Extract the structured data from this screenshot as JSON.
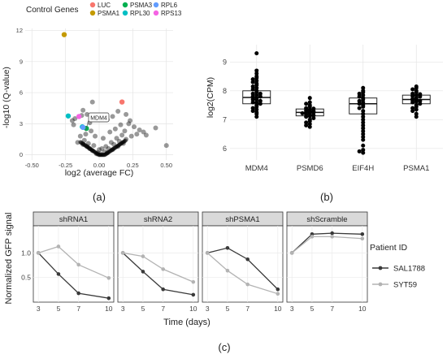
{
  "chart_data": [
    {
      "panel": "(a)",
      "type": "scatter",
      "xlabel": "log2 (average FC)",
      "ylabel": "-log10 (Q-value)",
      "xlim": [
        -0.55,
        0.55
      ],
      "ylim": [
        -0.5,
        12.2
      ],
      "xticks": [
        -0.5,
        -0.25,
        0.0,
        0.25,
        0.5
      ],
      "xtick_labels": [
        "-0.50",
        "-0.25",
        "0.00",
        "0.25",
        "0.50"
      ],
      "yticks": [
        0,
        3,
        6,
        9,
        12
      ],
      "grid": true,
      "legend_title": "Control Genes",
      "legend_position": "top",
      "annotation": "MDM4",
      "highlight_series": [
        {
          "name": "LUC",
          "color": "#f8766d",
          "points": [
            [
              0.17,
              5.1
            ]
          ]
        },
        {
          "name": "PSMA1",
          "color": "#c49a00",
          "points": [
            [
              -0.26,
              11.6
            ]
          ]
        },
        {
          "name": "PSMA3",
          "color": "#00b050",
          "points": [
            [
              -0.095,
              2.55
            ]
          ]
        },
        {
          "name": "RPL30",
          "color": "#00bfc4",
          "points": [
            [
              -0.23,
              3.75
            ],
            [
              -0.125,
              2.7
            ]
          ]
        },
        {
          "name": "RPL6",
          "color": "#619cff",
          "points": [
            [
              -0.12,
              2.65
            ]
          ]
        },
        {
          "name": "RPS13",
          "color": "#f564e3",
          "points": [
            [
              -0.15,
              3.7
            ]
          ]
        }
      ],
      "background_points": [
        [
          -0.05,
          5.1
        ],
        [
          -0.13,
          3.8
        ],
        [
          -0.12,
          4.3
        ],
        [
          -0.09,
          3.9
        ],
        [
          -0.18,
          3.5
        ],
        [
          -0.19,
          2.9
        ],
        [
          -0.07,
          3.1
        ],
        [
          -0.02,
          3.5
        ],
        [
          0.06,
          3.4
        ],
        [
          0.1,
          3.7
        ],
        [
          0.14,
          4.2
        ],
        [
          0.2,
          3.9
        ],
        [
          0.22,
          3.0
        ],
        [
          0.26,
          2.7
        ],
        [
          0.3,
          2.4
        ],
        [
          0.35,
          1.9
        ],
        [
          0.19,
          2.3
        ],
        [
          0.16,
          2.9
        ],
        [
          0.12,
          2.5
        ],
        [
          0.08,
          2.2
        ],
        [
          0.03,
          1.6
        ],
        [
          -0.03,
          1.8
        ],
        [
          -0.06,
          2.3
        ],
        [
          -0.1,
          2.0
        ],
        [
          -0.14,
          1.8
        ],
        [
          -0.16,
          1.2
        ],
        [
          -0.11,
          1.4
        ],
        [
          -0.08,
          1.1
        ],
        [
          -0.04,
          0.9
        ],
        [
          0.0,
          0.5
        ],
        [
          0.02,
          0.6
        ],
        [
          0.05,
          0.8
        ],
        [
          0.09,
          1.2
        ],
        [
          0.13,
          1.6
        ],
        [
          0.17,
          1.9
        ],
        [
          0.11,
          1.0
        ],
        [
          0.07,
          0.6
        ],
        [
          0.04,
          0.3
        ],
        [
          -0.01,
          0.2
        ],
        [
          -0.05,
          0.4
        ],
        [
          -0.07,
          0.6
        ],
        [
          -0.09,
          0.8
        ],
        [
          -0.12,
          1.0
        ],
        [
          0.15,
          1.3
        ],
        [
          0.2,
          1.5
        ],
        [
          0.24,
          1.8
        ],
        [
          0.28,
          2.0
        ],
        [
          0.33,
          2.2
        ],
        [
          0.18,
          1.1
        ],
        [
          0.01,
          0.1
        ],
        [
          -0.02,
          0.1
        ],
        [
          0.06,
          0.2
        ],
        [
          0.1,
          0.5
        ],
        [
          0.14,
          0.8
        ],
        [
          0.42,
          2.6
        ],
        [
          0.5,
          0.9
        ],
        [
          0.23,
          3.3
        ],
        [
          -0.2,
          3.3
        ]
      ]
    },
    {
      "panel": "(b)",
      "type": "box",
      "ylabel": "log2(CPM)",
      "categories": [
        "MDM4",
        "PSMD6",
        "EIF4H",
        "PSMA1"
      ],
      "ylim": [
        5.6,
        9.6
      ],
      "yticks": [
        6,
        7,
        8,
        9
      ],
      "grid": true,
      "boxes": [
        {
          "category": "MDM4",
          "q1": 7.55,
          "median": 7.77,
          "q3": 8.0,
          "whisker_low": 7.1,
          "whisker_high": 8.7,
          "points": [
            9.3,
            8.7,
            8.6,
            8.5,
            8.45,
            8.4,
            8.35,
            8.3,
            8.25,
            8.2,
            8.15,
            8.1,
            8.05,
            8.0,
            7.95,
            7.9,
            7.9,
            7.85,
            7.8,
            7.8,
            7.75,
            7.7,
            7.7,
            7.65,
            7.6,
            7.6,
            7.55,
            7.5,
            7.45,
            7.4,
            7.35,
            7.3,
            7.25,
            7.2,
            7.1
          ]
        },
        {
          "category": "PSMD6",
          "q1": 7.13,
          "median": 7.25,
          "q3": 7.37,
          "whisker_low": 6.8,
          "whisker_high": 7.75,
          "points": [
            7.75,
            7.6,
            7.55,
            7.5,
            7.45,
            7.4,
            7.38,
            7.35,
            7.32,
            7.3,
            7.28,
            7.25,
            7.25,
            7.22,
            7.2,
            7.18,
            7.15,
            7.12,
            7.1,
            7.05,
            7.0,
            6.95,
            6.9,
            6.85,
            6.8,
            6.75
          ]
        },
        {
          "category": "EIF4H",
          "q1": 7.2,
          "median": 7.55,
          "q3": 7.75,
          "whisker_low": 6.5,
          "whisker_high": 8.1,
          "points": [
            8.1,
            8.0,
            7.95,
            7.9,
            7.85,
            7.8,
            7.75,
            7.7,
            7.65,
            7.6,
            7.55,
            7.5,
            7.45,
            7.4,
            7.3,
            7.2,
            7.1,
            7.0,
            6.9,
            6.8,
            6.7,
            6.6,
            6.5,
            6.4,
            6.3,
            6.1,
            5.95,
            5.9,
            5.85
          ]
        },
        {
          "category": "PSMA1",
          "q1": 7.55,
          "median": 7.7,
          "q3": 7.85,
          "whisker_low": 7.1,
          "whisker_high": 8.15,
          "points": [
            8.15,
            8.1,
            8.05,
            8.0,
            7.95,
            7.9,
            7.88,
            7.85,
            7.82,
            7.8,
            7.75,
            7.72,
            7.7,
            7.68,
            7.65,
            7.62,
            7.6,
            7.55,
            7.5,
            7.45,
            7.4,
            7.35,
            7.3,
            7.2,
            7.1
          ]
        }
      ]
    },
    {
      "panel": "(c)",
      "type": "line",
      "xlabel": "Time (days)",
      "ylabel": "Normalized GFP signal",
      "x": [
        3,
        5,
        7,
        10
      ],
      "xlim": [
        2.5,
        10.5
      ],
      "ylim": [
        0,
        1.55
      ],
      "yticks": [
        0.5,
        1.0
      ],
      "ytick_labels": [
        "0.5",
        "1.0"
      ],
      "grid": true,
      "legend_title": "Patient ID",
      "legend_position": "right",
      "facets": [
        {
          "title": "shRNA1",
          "series": [
            {
              "name": "SAL1788",
              "color": "#3a3a3a",
              "values": [
                1.0,
                0.57,
                0.18,
                0.08
              ]
            },
            {
              "name": "SYT59",
              "color": "#b3b3b3",
              "values": [
                1.0,
                1.13,
                0.76,
                0.49
              ]
            }
          ]
        },
        {
          "title": "shRNA2",
          "series": [
            {
              "name": "SAL1788",
              "color": "#3a3a3a",
              "values": [
                1.0,
                0.62,
                0.26,
                0.15
              ]
            },
            {
              "name": "SYT59",
              "color": "#b3b3b3",
              "values": [
                1.0,
                0.93,
                0.67,
                0.41
              ]
            }
          ]
        },
        {
          "title": "shPSMA1",
          "series": [
            {
              "name": "SAL1788",
              "color": "#3a3a3a",
              "values": [
                1.0,
                1.1,
                0.87,
                0.26
              ]
            },
            {
              "name": "SYT59",
              "color": "#b3b3b3",
              "values": [
                1.0,
                0.64,
                0.36,
                0.17
              ]
            }
          ]
        },
        {
          "title": "shScramble",
          "series": [
            {
              "name": "SAL1788",
              "color": "#3a3a3a",
              "values": [
                1.0,
                1.38,
                1.4,
                1.38
              ]
            },
            {
              "name": "SYT59",
              "color": "#b3b3b3",
              "values": [
                1.0,
                1.33,
                1.33,
                1.29
              ]
            }
          ]
        }
      ]
    }
  ]
}
